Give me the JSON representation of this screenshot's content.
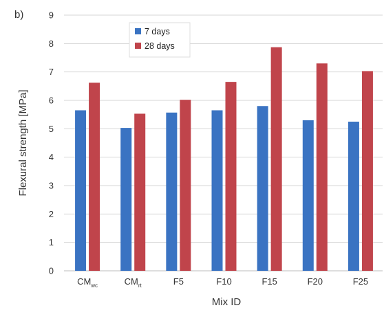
{
  "panel_label": "b)",
  "chart_data": {
    "type": "bar",
    "categories": [
      {
        "main": "CM",
        "sub": "wc"
      },
      {
        "main": "CM",
        "sub": "rt"
      },
      {
        "main": "F5",
        "sub": ""
      },
      {
        "main": "F10",
        "sub": ""
      },
      {
        "main": "F15",
        "sub": ""
      },
      {
        "main": "F20",
        "sub": ""
      },
      {
        "main": "F25",
        "sub": ""
      }
    ],
    "series": [
      {
        "name": "7 days",
        "color": "#3a73c2",
        "values": [
          5.65,
          5.03,
          5.57,
          5.65,
          5.8,
          5.3,
          5.25
        ]
      },
      {
        "name": "28 days",
        "color": "#c0444b",
        "values": [
          6.62,
          5.53,
          6.02,
          6.65,
          7.87,
          7.3,
          7.03
        ]
      }
    ],
    "xlabel": "Mix ID",
    "ylabel": "Flexural strength [MPa]",
    "ylim": [
      0,
      9
    ],
    "yticks": [
      0,
      1,
      2,
      3,
      4,
      5,
      6,
      7,
      8,
      9
    ],
    "grid": true,
    "legend_position": "top-left"
  }
}
